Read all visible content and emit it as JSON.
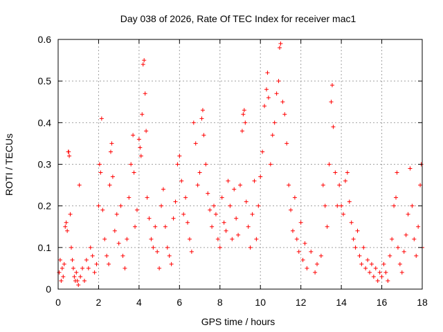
{
  "chart_data": {
    "type": "scatter",
    "title": "Day 038 of 2026, Rate Of TEC Index for receiver mac1",
    "xlabel": "GPS time / hours",
    "ylabel": "ROTI / TECUs",
    "xlim": [
      0,
      18
    ],
    "ylim": [
      0,
      0.6
    ],
    "x_ticks": [
      "0",
      "2",
      "4",
      "6",
      "8",
      "10",
      "12",
      "14",
      "16",
      "18"
    ],
    "y_ticks": [
      "0",
      "0.1",
      "0.2",
      "0.3",
      "0.4",
      "0.5",
      "0.6"
    ],
    "grid": true,
    "marker": "+",
    "color": "#ff0000",
    "series": [
      {
        "points": [
          [
            0.05,
            0.04
          ],
          [
            0.1,
            0.07
          ],
          [
            0.15,
            0.02
          ],
          [
            0.2,
            0.05
          ],
          [
            0.25,
            0.03
          ],
          [
            0.3,
            0.06
          ],
          [
            0.35,
            0.15
          ],
          [
            0.4,
            0.16
          ],
          [
            0.45,
            0.14
          ],
          [
            0.5,
            0.33
          ],
          [
            0.52,
            0.33
          ],
          [
            0.55,
            0.32
          ],
          [
            0.6,
            0.18
          ],
          [
            0.65,
            0.1
          ],
          [
            0.7,
            0.07
          ],
          [
            0.75,
            0.05
          ],
          [
            0.8,
            0.03
          ],
          [
            0.85,
            0.02
          ],
          [
            0.9,
            0.04
          ],
          [
            0.95,
            0.02
          ],
          [
            1.0,
            0.01
          ],
          [
            1.05,
            0.25
          ],
          [
            1.1,
            0.03
          ],
          [
            1.2,
            0.05
          ],
          [
            1.3,
            0.02
          ],
          [
            1.4,
            0.07
          ],
          [
            1.5,
            0.05
          ],
          [
            1.6,
            0.1
          ],
          [
            1.7,
            0.08
          ],
          [
            1.8,
            0.04
          ],
          [
            1.9,
            0.06
          ],
          [
            2.0,
            0.2
          ],
          [
            2.05,
            0.3
          ],
          [
            2.1,
            0.28
          ],
          [
            2.15,
            0.41
          ],
          [
            2.2,
            0.19
          ],
          [
            2.3,
            0.12
          ],
          [
            2.4,
            0.08
          ],
          [
            2.5,
            0.06
          ],
          [
            2.55,
            0.25
          ],
          [
            2.6,
            0.33
          ],
          [
            2.65,
            0.35
          ],
          [
            2.7,
            0.27
          ],
          [
            2.8,
            0.14
          ],
          [
            2.9,
            0.18
          ],
          [
            3.0,
            0.11
          ],
          [
            3.1,
            0.2
          ],
          [
            3.2,
            0.08
          ],
          [
            3.3,
            0.05
          ],
          [
            3.4,
            0.12
          ],
          [
            3.5,
            0.22
          ],
          [
            3.6,
            0.3
          ],
          [
            3.7,
            0.37
          ],
          [
            3.75,
            0.28
          ],
          [
            3.8,
            0.15
          ],
          [
            3.9,
            0.19
          ],
          [
            4.0,
            0.36
          ],
          [
            4.05,
            0.34
          ],
          [
            4.1,
            0.32
          ],
          [
            4.15,
            0.42
          ],
          [
            4.2,
            0.54
          ],
          [
            4.25,
            0.55
          ],
          [
            4.3,
            0.47
          ],
          [
            4.35,
            0.38
          ],
          [
            4.4,
            0.22
          ],
          [
            4.5,
            0.17
          ],
          [
            4.6,
            0.12
          ],
          [
            4.7,
            0.1
          ],
          [
            4.8,
            0.15
          ],
          [
            4.9,
            0.09
          ],
          [
            5.0,
            0.05
          ],
          [
            5.1,
            0.2
          ],
          [
            5.2,
            0.24
          ],
          [
            5.3,
            0.15
          ],
          [
            5.4,
            0.1
          ],
          [
            5.5,
            0.08
          ],
          [
            5.6,
            0.06
          ],
          [
            5.7,
            0.17
          ],
          [
            5.8,
            0.21
          ],
          [
            5.9,
            0.3
          ],
          [
            6.0,
            0.32
          ],
          [
            6.1,
            0.26
          ],
          [
            6.2,
            0.18
          ],
          [
            6.3,
            0.22
          ],
          [
            6.4,
            0.16
          ],
          [
            6.5,
            0.12
          ],
          [
            6.6,
            0.09
          ],
          [
            6.7,
            0.4
          ],
          [
            6.8,
            0.35
          ],
          [
            6.9,
            0.25
          ],
          [
            7.0,
            0.28
          ],
          [
            7.1,
            0.41
          ],
          [
            7.15,
            0.43
          ],
          [
            7.2,
            0.37
          ],
          [
            7.3,
            0.3
          ],
          [
            7.4,
            0.23
          ],
          [
            7.5,
            0.19
          ],
          [
            7.6,
            0.15
          ],
          [
            7.7,
            0.2
          ],
          [
            7.8,
            0.18
          ],
          [
            7.9,
            0.12
          ],
          [
            8.0,
            0.1
          ],
          [
            8.1,
            0.22
          ],
          [
            8.2,
            0.16
          ],
          [
            8.3,
            0.14
          ],
          [
            8.4,
            0.26
          ],
          [
            8.5,
            0.2
          ],
          [
            8.6,
            0.12
          ],
          [
            8.7,
            0.24
          ],
          [
            8.8,
            0.17
          ],
          [
            8.9,
            0.13
          ],
          [
            9.0,
            0.25
          ],
          [
            9.1,
            0.38
          ],
          [
            9.15,
            0.42
          ],
          [
            9.2,
            0.43
          ],
          [
            9.25,
            0.4
          ],
          [
            9.3,
            0.21
          ],
          [
            9.4,
            0.15
          ],
          [
            9.5,
            0.1
          ],
          [
            9.6,
            0.18
          ],
          [
            9.7,
            0.26
          ],
          [
            9.8,
            0.12
          ],
          [
            9.9,
            0.2
          ],
          [
            10.0,
            0.27
          ],
          [
            10.1,
            0.33
          ],
          [
            10.2,
            0.44
          ],
          [
            10.3,
            0.48
          ],
          [
            10.35,
            0.52
          ],
          [
            10.4,
            0.46
          ],
          [
            10.5,
            0.3
          ],
          [
            10.6,
            0.37
          ],
          [
            10.7,
            0.4
          ],
          [
            10.8,
            0.47
          ],
          [
            10.9,
            0.5
          ],
          [
            10.95,
            0.58
          ],
          [
            11.0,
            0.59
          ],
          [
            11.1,
            0.45
          ],
          [
            11.2,
            0.42
          ],
          [
            11.3,
            0.35
          ],
          [
            11.4,
            0.25
          ],
          [
            11.5,
            0.19
          ],
          [
            11.6,
            0.14
          ],
          [
            11.7,
            0.22
          ],
          [
            11.8,
            0.12
          ],
          [
            11.9,
            0.09
          ],
          [
            12.0,
            0.16
          ],
          [
            12.1,
            0.07
          ],
          [
            12.2,
            0.11
          ],
          [
            12.3,
            0.05
          ],
          [
            12.5,
            0.09
          ],
          [
            12.7,
            0.04
          ],
          [
            12.8,
            0.06
          ],
          [
            13.0,
            0.08
          ],
          [
            13.1,
            0.25
          ],
          [
            13.2,
            0.2
          ],
          [
            13.3,
            0.15
          ],
          [
            13.4,
            0.3
          ],
          [
            13.5,
            0.45
          ],
          [
            13.55,
            0.49
          ],
          [
            13.6,
            0.39
          ],
          [
            13.7,
            0.28
          ],
          [
            13.8,
            0.2
          ],
          [
            13.9,
            0.25
          ],
          [
            14.0,
            0.2
          ],
          [
            14.1,
            0.18
          ],
          [
            14.2,
            0.26
          ],
          [
            14.3,
            0.28
          ],
          [
            14.4,
            0.21
          ],
          [
            14.5,
            0.16
          ],
          [
            14.6,
            0.12
          ],
          [
            14.7,
            0.1
          ],
          [
            14.8,
            0.14
          ],
          [
            14.9,
            0.08
          ],
          [
            15.0,
            0.06
          ],
          [
            15.1,
            0.1
          ],
          [
            15.2,
            0.05
          ],
          [
            15.3,
            0.07
          ],
          [
            15.4,
            0.04
          ],
          [
            15.5,
            0.06
          ],
          [
            15.6,
            0.03
          ],
          [
            15.7,
            0.05
          ],
          [
            15.8,
            0.02
          ],
          [
            15.9,
            0.04
          ],
          [
            16.0,
            0.03
          ],
          [
            16.1,
            0.06
          ],
          [
            16.2,
            0.04
          ],
          [
            16.3,
            0.02
          ],
          [
            16.4,
            0.08
          ],
          [
            16.5,
            0.12
          ],
          [
            16.6,
            0.2
          ],
          [
            16.7,
            0.22
          ],
          [
            16.75,
            0.28
          ],
          [
            16.8,
            0.1
          ],
          [
            16.9,
            0.06
          ],
          [
            17.0,
            0.04
          ],
          [
            17.1,
            0.09
          ],
          [
            17.2,
            0.13
          ],
          [
            17.3,
            0.18
          ],
          [
            17.4,
            0.29
          ],
          [
            17.5,
            0.2
          ],
          [
            17.6,
            0.12
          ],
          [
            17.7,
            0.08
          ],
          [
            17.8,
            0.15
          ],
          [
            17.9,
            0.25
          ],
          [
            17.95,
            0.3
          ],
          [
            18.0,
            0.1
          ]
        ]
      }
    ]
  }
}
